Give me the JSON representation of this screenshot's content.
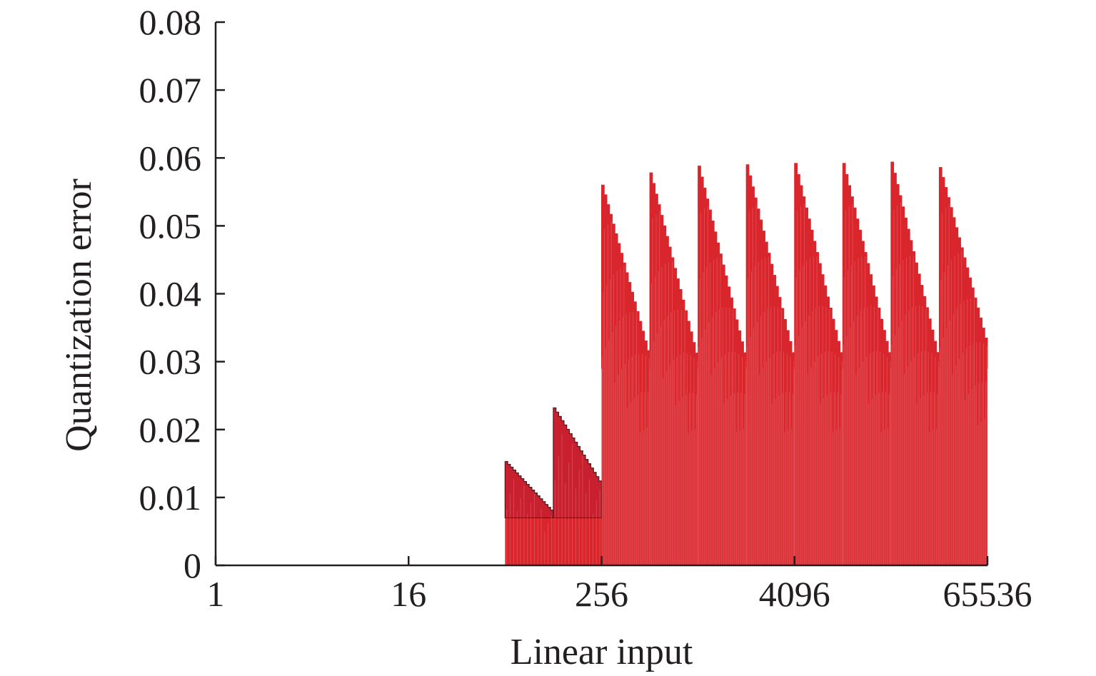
{
  "chart_data": {
    "type": "area",
    "title": "",
    "xlabel": "Linear input",
    "ylabel": "Quantization error",
    "x_scale": "log2",
    "xlim": [
      1,
      65536
    ],
    "ylim": [
      0,
      0.08
    ],
    "x_ticks": [
      1,
      16,
      256,
      4096,
      65536
    ],
    "x_tick_labels": [
      "1",
      "16",
      "256",
      "4096",
      "65536"
    ],
    "y_ticks": [
      0,
      0.01,
      0.02,
      0.03,
      0.04,
      0.05,
      0.06,
      0.07,
      0.08
    ],
    "y_tick_labels": [
      "0",
      "0.01",
      "0.02",
      "0.03",
      "0.04",
      "0.05",
      "0.06",
      "0.07",
      "0.08"
    ],
    "grid": false,
    "legend": "none",
    "colors": {
      "series": "#d9262c",
      "series_dark": "#c8202e",
      "axis": "#231f20"
    },
    "series": [
      {
        "envelope_segments": [
          {
            "x_start": 64,
            "x_end": 128,
            "y_start": 0.0153,
            "y_end": 0.0077,
            "y_floor": 0.007
          },
          {
            "x_start": 128,
            "x_end": 256,
            "y_start": 0.0232,
            "y_end": 0.0118,
            "y_floor": 0.007
          },
          {
            "x_start": 256,
            "x_end": 512,
            "y_start": 0.056,
            "y_end": 0.0302,
            "y_floor": 0.029
          },
          {
            "x_start": 512,
            "x_end": 1024,
            "y_start": 0.0578,
            "y_end": 0.0297,
            "y_floor": 0.029
          },
          {
            "x_start": 1024,
            "x_end": 2048,
            "y_start": 0.0588,
            "y_end": 0.0297,
            "y_floor": 0.029
          },
          {
            "x_start": 2048,
            "x_end": 4096,
            "y_start": 0.059,
            "y_end": 0.0297,
            "y_floor": 0.029
          },
          {
            "x_start": 4096,
            "x_end": 8192,
            "y_start": 0.0592,
            "y_end": 0.0297,
            "y_floor": 0.029
          },
          {
            "x_start": 8192,
            "x_end": 16384,
            "y_start": 0.0592,
            "y_end": 0.0297,
            "y_floor": 0.029
          },
          {
            "x_start": 16384,
            "x_end": 32768,
            "y_start": 0.0594,
            "y_end": 0.0297,
            "y_floor": 0.029
          },
          {
            "x_start": 32768,
            "x_end": 65536,
            "y_start": 0.0586,
            "y_end": 0.032,
            "y_floor": 0.029
          }
        ]
      }
    ]
  }
}
